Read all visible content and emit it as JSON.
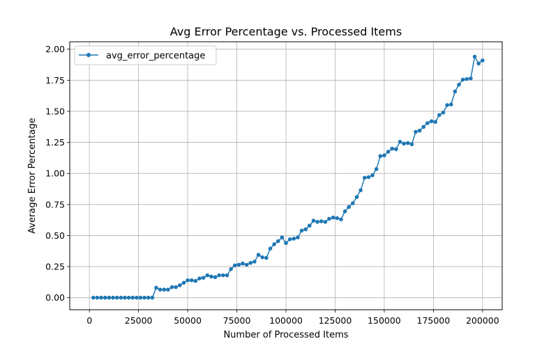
{
  "chart_data": {
    "type": "line",
    "title": "Avg Error Percentage vs. Processed Items",
    "xlabel": "Number of Processed Items",
    "ylabel": "Average Error Percentage",
    "xlim": [
      -10000,
      210000
    ],
    "ylim": [
      -0.097,
      2.06
    ],
    "xticks": [
      0,
      25000,
      50000,
      75000,
      100000,
      125000,
      150000,
      175000,
      200000
    ],
    "xtick_labels": [
      "0",
      "25000",
      "50000",
      "75000",
      "100000",
      "125000",
      "150000",
      "175000",
      "200000"
    ],
    "yticks": [
      0.0,
      0.25,
      0.5,
      0.75,
      1.0,
      1.25,
      1.5,
      1.75,
      2.0
    ],
    "ytick_labels": [
      "0.00",
      "0.25",
      "0.50",
      "0.75",
      "1.00",
      "1.25",
      "1.50",
      "1.75",
      "2.00"
    ],
    "grid": true,
    "legend_position": "upper-left",
    "colors": {
      "series": "#1f77b4",
      "grid": "#b0b0b0"
    },
    "series": [
      {
        "name": "avg_error_percentage",
        "marker": "circle",
        "x": [
          2000,
          4000,
          6000,
          8000,
          10000,
          12000,
          14000,
          16000,
          18000,
          20000,
          22000,
          24000,
          26000,
          28000,
          30000,
          32000,
          34000,
          36000,
          38000,
          40000,
          42000,
          44000,
          46000,
          48000,
          50000,
          52000,
          54000,
          56000,
          58000,
          60000,
          62000,
          64000,
          66000,
          68000,
          70000,
          72000,
          74000,
          76000,
          78000,
          80000,
          82000,
          84000,
          86000,
          88000,
          90000,
          92000,
          94000,
          96000,
          98000,
          100000,
          102000,
          104000,
          106000,
          108000,
          110000,
          112000,
          114000,
          116000,
          118000,
          120000,
          122000,
          124000,
          126000,
          128000,
          130000,
          132000,
          134000,
          136000,
          138000,
          140000,
          142000,
          144000,
          146000,
          148000,
          150000,
          152000,
          154000,
          156000,
          158000,
          160000,
          162000,
          164000,
          166000,
          168000,
          170000,
          172000,
          174000,
          176000,
          178000,
          180000,
          182000,
          184000,
          186000,
          188000,
          190000,
          192000,
          194000,
          196000,
          198000,
          200000
        ],
        "y": [
          0.0,
          0.0,
          0.0,
          0.0,
          0.0,
          0.0,
          0.0,
          0.0,
          0.0,
          0.0,
          0.0,
          0.0,
          0.0,
          0.0,
          0.0,
          0.0,
          0.08,
          0.065,
          0.065,
          0.065,
          0.085,
          0.085,
          0.1,
          0.12,
          0.14,
          0.14,
          0.135,
          0.155,
          0.16,
          0.18,
          0.17,
          0.165,
          0.18,
          0.18,
          0.18,
          0.23,
          0.26,
          0.265,
          0.275,
          0.265,
          0.28,
          0.29,
          0.345,
          0.325,
          0.32,
          0.395,
          0.43,
          0.455,
          0.485,
          0.44,
          0.47,
          0.475,
          0.485,
          0.54,
          0.55,
          0.58,
          0.62,
          0.61,
          0.615,
          0.61,
          0.635,
          0.645,
          0.64,
          0.63,
          0.695,
          0.73,
          0.76,
          0.81,
          0.865,
          0.965,
          0.97,
          0.985,
          1.035,
          1.14,
          1.145,
          1.175,
          1.2,
          1.195,
          1.255,
          1.24,
          1.245,
          1.235,
          1.335,
          1.345,
          1.375,
          1.405,
          1.42,
          1.415,
          1.47,
          1.49,
          1.55,
          1.555,
          1.66,
          1.715,
          1.755,
          1.76,
          1.765,
          1.94,
          1.885,
          1.91
        ]
      }
    ]
  }
}
